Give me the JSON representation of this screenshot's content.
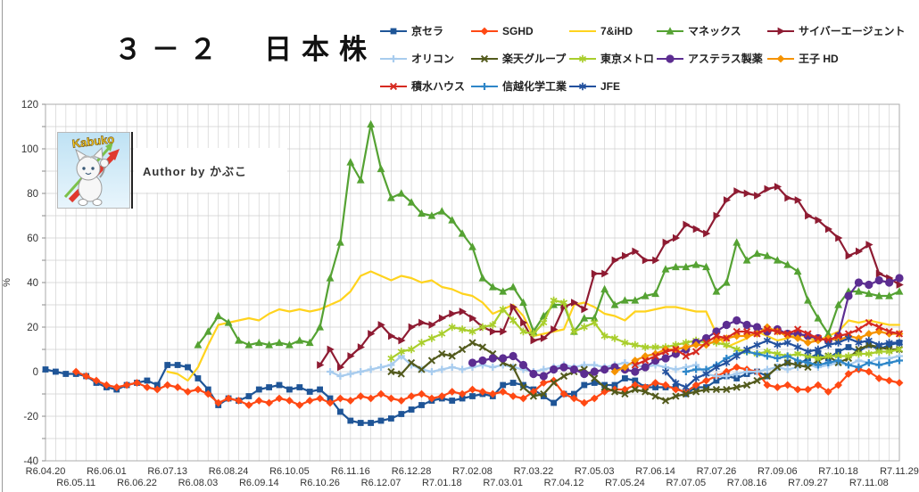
{
  "logo": {
    "logo_text": "Kabuko",
    "author_text": "Author by かぶこ"
  },
  "chart_data": {
    "type": "line",
    "title": "３－２　日本株",
    "ylabel": "%",
    "ylim": [
      -40,
      120
    ],
    "y_tick_step": 20,
    "grid_minor_step": 10,
    "grid": true,
    "legend_position": "top-right",
    "x_axis_weeks": 84,
    "x_labels_top": [
      "R6.04.20",
      "R6.06.01",
      "R6.07.13",
      "R6.08.24",
      "R6.10.05",
      "R6.11.16",
      "R6.12.28",
      "R7.02.08",
      "R7.03.22",
      "R7.05.03",
      "R7.06.14",
      "R7.07.26",
      "R7.09.06",
      "R7.10.18",
      "R7.11.29"
    ],
    "x_labels_bottom": [
      "R6.05.11",
      "R6.06.22",
      "R6.08.03",
      "R6.09.14",
      "R6.10.26",
      "R6.12.07",
      "R7.01.18",
      "R7.03.01",
      "R7.04.12",
      "R7.05.24",
      "R7.07.05",
      "R7.08.16",
      "R7.09.27",
      "R7.11.08"
    ],
    "y_tick_labels": [
      120,
      100,
      80,
      60,
      40,
      20,
      0,
      -20,
      -40
    ],
    "series": [
      {
        "name": "京セラ",
        "color": "#1F5597",
        "marker": "square",
        "start": 0,
        "values": [
          1,
          0,
          -1,
          -1,
          -2,
          -5,
          -7,
          -8,
          -6,
          -5,
          -4,
          -6,
          3,
          3,
          2,
          -3,
          -8,
          -15,
          -12,
          -13,
          -11,
          -8,
          -7,
          -6,
          -8,
          -7,
          -9,
          -8,
          -12,
          -18,
          -22,
          -23,
          -23,
          -22,
          -21,
          -19,
          -17,
          -15,
          -13,
          -12,
          -13,
          -12,
          -11,
          -10,
          -11,
          -6,
          -5,
          -6,
          -8,
          -11,
          -14,
          -10,
          -10,
          -6,
          -5,
          -6,
          -6,
          -3,
          -4,
          -7,
          -7,
          -7,
          -7,
          -10,
          -7,
          -7,
          -4,
          -2,
          -3,
          -1,
          0,
          -2,
          2,
          4,
          3,
          6,
          8,
          6,
          9,
          11,
          9,
          12,
          10,
          12,
          13
        ]
      },
      {
        "name": "SGHD",
        "color": "#FF4914",
        "marker": "diamond",
        "start": 3,
        "values": [
          0,
          -2,
          -4,
          -6,
          -7,
          -6,
          -5,
          -7,
          -8,
          -6,
          -7,
          -9,
          -8,
          -10,
          -14,
          -12,
          -13,
          -15,
          -13,
          -14,
          -12,
          -13,
          -15,
          -13,
          -12,
          -14,
          -12,
          -13,
          -11,
          -12,
          -10,
          -12,
          -13,
          -11,
          -10,
          -12,
          -11,
          -9,
          -10,
          -8,
          -9,
          -10,
          -9,
          -11,
          -12,
          -9,
          -5,
          -4,
          -10,
          -12,
          -14,
          -12,
          -9,
          -8,
          -8,
          -6,
          -7,
          -5,
          -6,
          -8,
          -9,
          -6,
          -4,
          -2,
          0,
          2,
          1,
          0,
          -6,
          -7,
          -6,
          -8,
          -8,
          -6,
          -9,
          -6,
          -1,
          1,
          0,
          -3,
          -4,
          -5
        ]
      },
      {
        "name": "7&iHD",
        "color": "#FFD31E",
        "marker": "none",
        "start": 12,
        "values": [
          0,
          -1,
          -4,
          2,
          12,
          21,
          22,
          23,
          24,
          23,
          26,
          28,
          27,
          28,
          27,
          28,
          30,
          32,
          36,
          43,
          45,
          43,
          41,
          43,
          42,
          40,
          41,
          38,
          37,
          35,
          34,
          31,
          26,
          28,
          30,
          25,
          16,
          17,
          18,
          19,
          30,
          31,
          29,
          26,
          25,
          23,
          27,
          27,
          28,
          29,
          29,
          28,
          27,
          27,
          17,
          11,
          13,
          15,
          18,
          16,
          14,
          15,
          17,
          15,
          14,
          16,
          18,
          23,
          22,
          23,
          22,
          21,
          21
        ]
      },
      {
        "name": "マネックス",
        "color": "#55A233",
        "marker": "triangle",
        "start": 15,
        "values": [
          12,
          18,
          25,
          22,
          14,
          12,
          13,
          12,
          13,
          12,
          14,
          13,
          20,
          42,
          58,
          94,
          86,
          111,
          91,
          78,
          80,
          76,
          71,
          70,
          72,
          68,
          62,
          56,
          42,
          38,
          36,
          38,
          31,
          18,
          25,
          30,
          30,
          18,
          24,
          24,
          37,
          30,
          32,
          32,
          34,
          35,
          46,
          47,
          47,
          48,
          47,
          36,
          40,
          58,
          50,
          53,
          52,
          50,
          48,
          45,
          32,
          24,
          17,
          30,
          36,
          36,
          35,
          34,
          34,
          36
        ]
      },
      {
        "name": "サイバーエージェント",
        "color": "#8E1B32",
        "marker": "triangle-right",
        "start": 27,
        "values": [
          3,
          10,
          2,
          7,
          11,
          17,
          21,
          16,
          14,
          20,
          22,
          21,
          24,
          26,
          27,
          24,
          20,
          18,
          18,
          29,
          22,
          14,
          15,
          19,
          29,
          31,
          28,
          44,
          44,
          50,
          52,
          54,
          50,
          50,
          58,
          60,
          66,
          64,
          62,
          70,
          77,
          81,
          80,
          79,
          82,
          83,
          78,
          77,
          70,
          68,
          64,
          60,
          52,
          54,
          57,
          44,
          42,
          39
        ]
      },
      {
        "name": "オリコン",
        "color": "#A8CCEE",
        "marker": "plus",
        "start": 28,
        "values": [
          0,
          -2,
          -1,
          0,
          1,
          2,
          3,
          7,
          3,
          1,
          0,
          1,
          2,
          1,
          2,
          3,
          2,
          3,
          2,
          1,
          0,
          1,
          2,
          3,
          2,
          3,
          3,
          2,
          3,
          4,
          3,
          2,
          3,
          2,
          1,
          2,
          3,
          -1,
          -2,
          -2,
          -1,
          0,
          0,
          1,
          2,
          1,
          2,
          3,
          2,
          3,
          4,
          3,
          5,
          4,
          6,
          6,
          7
        ]
      },
      {
        "name": "楽天グループ",
        "color": "#525A1C",
        "marker": "x",
        "start": 34,
        "values": [
          0,
          -1,
          4,
          1,
          5,
          8,
          7,
          10,
          13,
          11,
          8,
          4,
          2,
          -7,
          -11,
          -10,
          -5,
          -2,
          0,
          1,
          -3,
          -7,
          -9,
          -10,
          -8,
          -9,
          -11,
          -13,
          -11,
          -10,
          -9,
          -8,
          -8,
          -8,
          -7,
          -6,
          -4,
          -2,
          2,
          4,
          3,
          2,
          5,
          7,
          4,
          6,
          10,
          12,
          11,
          10,
          10
        ]
      },
      {
        "name": "東京メトロ",
        "color": "#A9CE2C",
        "marker": "asterisk",
        "start": 34,
        "values": [
          6,
          9,
          10,
          13,
          15,
          17,
          20,
          19,
          18,
          20,
          21,
          28,
          23,
          18,
          17,
          22,
          32,
          31,
          18,
          20,
          22,
          16,
          15,
          13,
          12,
          11,
          11,
          11,
          12,
          13,
          14,
          13,
          13,
          12,
          10,
          9,
          8,
          9,
          8,
          7,
          8,
          7,
          6,
          7,
          7,
          7,
          8,
          8,
          9,
          9,
          10
        ]
      },
      {
        "name": "アステラス製薬",
        "color": "#5C2D91",
        "marker": "circle",
        "start": 42,
        "values": [
          4,
          5,
          6,
          6,
          7,
          3,
          -1,
          -2,
          1,
          2,
          1,
          -1,
          0,
          1,
          2,
          1,
          0,
          2,
          5,
          6,
          8,
          10,
          13,
          15,
          18,
          21,
          23,
          21,
          20,
          18,
          19,
          17,
          17,
          16,
          15,
          14,
          16,
          34,
          40,
          39,
          41,
          40,
          42
        ]
      },
      {
        "name": "王子 HD",
        "color": "#F59300",
        "marker": "diamond",
        "start": 56,
        "values": [
          0,
          2,
          5,
          7,
          8,
          10,
          10,
          11,
          12,
          12,
          14,
          15,
          16,
          16,
          17,
          20,
          18,
          16,
          15,
          13,
          14,
          15,
          14,
          16,
          15,
          17,
          18,
          17,
          17
        ]
      },
      {
        "name": "積水ハウス",
        "color": "#D62A20",
        "marker": "x",
        "start": 58,
        "values": [
          3,
          5,
          7,
          9,
          10,
          7,
          9,
          13,
          16,
          15,
          18,
          18,
          17,
          19,
          18,
          17,
          19,
          17,
          15,
          14,
          16,
          17,
          19,
          22,
          20,
          18,
          17
        ]
      },
      {
        "name": "信越化学工業",
        "color": "#2E86C8",
        "marker": "plus",
        "start": 63,
        "values": [
          0,
          1,
          1,
          3,
          6,
          8,
          9,
          8,
          7,
          6,
          7,
          5,
          4,
          3,
          4,
          5,
          3,
          2,
          4,
          3,
          4,
          5
        ]
      },
      {
        "name": "JFE",
        "color": "#23519E",
        "marker": "asterisk",
        "start": 61,
        "values": [
          0,
          -5,
          -7,
          -3,
          -1,
          2,
          4,
          7,
          10,
          12,
          14,
          12,
          13,
          11,
          9,
          10,
          12,
          13,
          15,
          13,
          14,
          12,
          13,
          13
        ]
      }
    ]
  }
}
